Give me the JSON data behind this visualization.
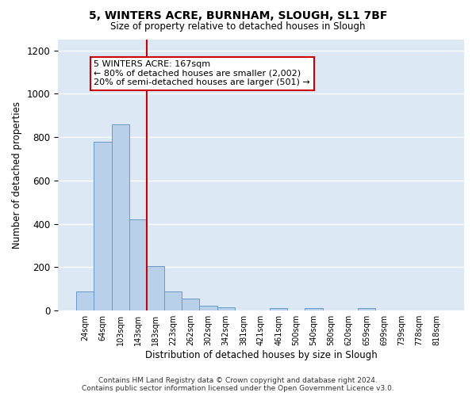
{
  "title_line1": "5, WINTERS ACRE, BURNHAM, SLOUGH, SL1 7BF",
  "title_line2": "Size of property relative to detached houses in Slough",
  "xlabel": "Distribution of detached houses by size in Slough",
  "ylabel": "Number of detached properties",
  "categories": [
    "24sqm",
    "64sqm",
    "103sqm",
    "143sqm",
    "183sqm",
    "223sqm",
    "262sqm",
    "302sqm",
    "342sqm",
    "381sqm",
    "421sqm",
    "461sqm",
    "500sqm",
    "540sqm",
    "580sqm",
    "620sqm",
    "659sqm",
    "699sqm",
    "739sqm",
    "778sqm",
    "818sqm"
  ],
  "values": [
    90,
    780,
    860,
    420,
    205,
    90,
    55,
    22,
    14,
    0,
    0,
    10,
    0,
    10,
    0,
    0,
    10,
    0,
    0,
    0,
    0
  ],
  "bar_color": "#b8d0ea",
  "bar_edge_color": "#6699cc",
  "vline_color": "#cc0000",
  "vline_pos": 3.5,
  "ylim": [
    0,
    1250
  ],
  "yticks": [
    0,
    200,
    400,
    600,
    800,
    1000,
    1200
  ],
  "annotation_text": "5 WINTERS ACRE: 167sqm\n← 80% of detached houses are smaller (2,002)\n20% of semi-detached houses are larger (501) →",
  "annotation_box_edgecolor": "#cc0000",
  "footer_text": "Contains HM Land Registry data © Crown copyright and database right 2024.\nContains public sector information licensed under the Open Government Licence v3.0.",
  "bg_color": "#dde8f5"
}
